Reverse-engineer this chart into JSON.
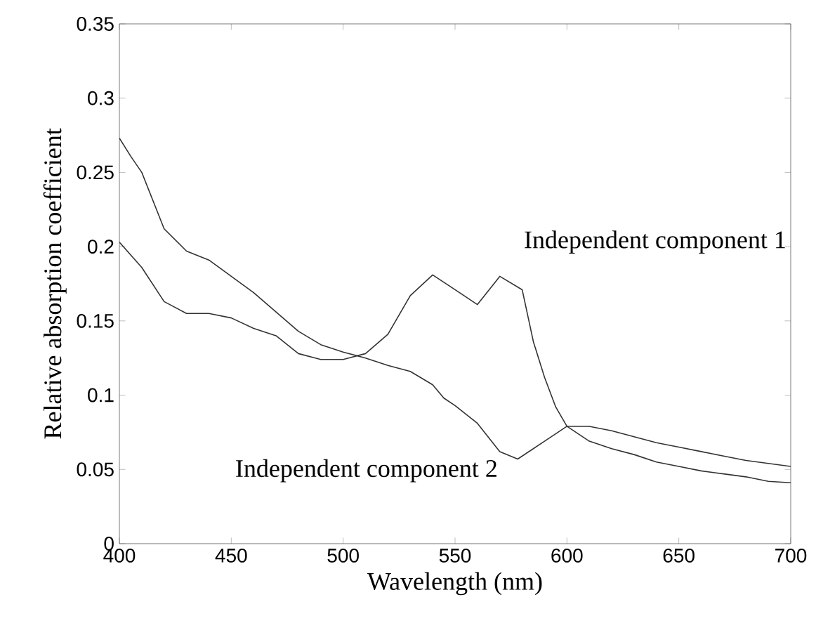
{
  "chart_data": {
    "type": "line",
    "xlabel": "Wavelength (nm)",
    "ylabel": "Relative absorption coefficient",
    "xlim": [
      400,
      700
    ],
    "ylim": [
      0,
      0.35
    ],
    "xticks": [
      400,
      450,
      500,
      550,
      600,
      650,
      700
    ],
    "yticks": [
      0,
      0.05,
      0.1,
      0.15,
      0.2,
      0.25,
      0.3,
      0.35
    ],
    "grid": false,
    "legend": false,
    "marker": "none",
    "line_style": "solid",
    "series": [
      {
        "name": "Independent component 1",
        "color": "#333333",
        "x": [
          400,
          410,
          420,
          430,
          440,
          450,
          460,
          470,
          480,
          490,
          500,
          510,
          520,
          530,
          540,
          550,
          560,
          570,
          580,
          585,
          590,
          595,
          600,
          610,
          620,
          630,
          640,
          650,
          660,
          670,
          680,
          690,
          700
        ],
        "values": [
          0.203,
          0.186,
          0.163,
          0.155,
          0.155,
          0.152,
          0.145,
          0.14,
          0.128,
          0.124,
          0.124,
          0.128,
          0.141,
          0.167,
          0.181,
          0.171,
          0.161,
          0.18,
          0.171,
          0.136,
          0.112,
          0.092,
          0.079,
          0.069,
          0.064,
          0.06,
          0.055,
          0.052,
          0.049,
          0.047,
          0.045,
          0.042,
          0.041
        ]
      },
      {
        "name": "Independent component 2",
        "color": "#333333",
        "x": [
          400,
          405,
          410,
          420,
          430,
          440,
          450,
          460,
          470,
          480,
          490,
          500,
          510,
          520,
          530,
          540,
          545,
          550,
          560,
          570,
          578,
          590,
          600,
          610,
          620,
          630,
          640,
          650,
          660,
          670,
          680,
          690,
          700
        ],
        "values": [
          0.273,
          0.261,
          0.25,
          0.212,
          0.197,
          0.191,
          0.18,
          0.169,
          0.156,
          0.143,
          0.134,
          0.129,
          0.125,
          0.12,
          0.116,
          0.107,
          0.098,
          0.093,
          0.081,
          0.062,
          0.057,
          0.069,
          0.079,
          0.079,
          0.076,
          0.072,
          0.068,
          0.065,
          0.062,
          0.059,
          0.056,
          0.054,
          0.052
        ]
      }
    ]
  }
}
